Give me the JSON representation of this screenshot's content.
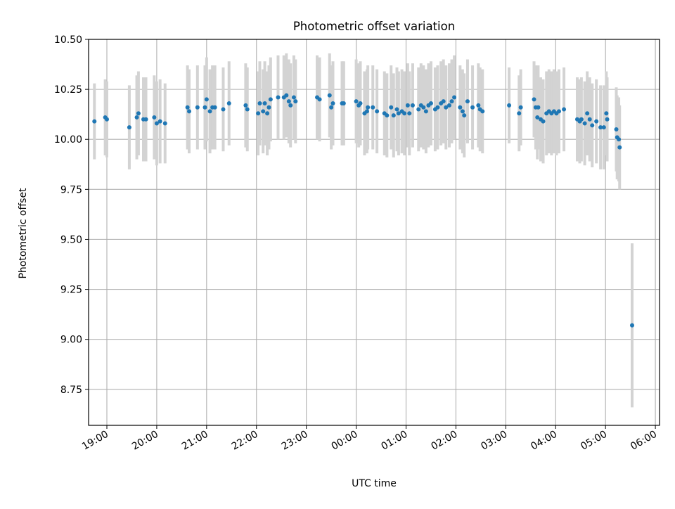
{
  "chart_data": {
    "type": "scatter",
    "title": "Photometric offset variation",
    "xlabel": "UTC time",
    "ylabel": "Photometric offset",
    "xlim": [
      "18:38",
      "30:05"
    ],
    "ylim": [
      8.57,
      10.5
    ],
    "grid": true,
    "x_ticks": [
      "19:00",
      "20:00",
      "21:00",
      "22:00",
      "23:00",
      "00:00",
      "01:00",
      "02:00",
      "03:00",
      "04:00",
      "05:00",
      "06:00"
    ],
    "y_ticks": [
      "10.50",
      "10.25",
      "10.00",
      "9.75",
      "9.50",
      "9.25",
      "9.00",
      "8.75"
    ],
    "point_color": "#1f77b4",
    "errorbar_color": "#d3d3d3",
    "points": [
      {
        "t": "18:45",
        "y": 10.09,
        "err": 0.19
      },
      {
        "t": "18:58",
        "y": 10.11,
        "err": 0.19
      },
      {
        "t": "19:00",
        "y": 10.1,
        "err": 0.19
      },
      {
        "t": "19:27",
        "y": 10.06,
        "err": 0.21
      },
      {
        "t": "19:36",
        "y": 10.11,
        "err": 0.21
      },
      {
        "t": "19:38",
        "y": 10.13,
        "err": 0.21
      },
      {
        "t": "19:44",
        "y": 10.1,
        "err": 0.21
      },
      {
        "t": "19:47",
        "y": 10.1,
        "err": 0.21
      },
      {
        "t": "19:57",
        "y": 10.11,
        "err": 0.21
      },
      {
        "t": "20:00",
        "y": 10.08,
        "err": 0.21
      },
      {
        "t": "20:04",
        "y": 10.09,
        "err": 0.21
      },
      {
        "t": "20:10",
        "y": 10.08,
        "err": 0.2
      },
      {
        "t": "20:37",
        "y": 10.16,
        "err": 0.21
      },
      {
        "t": "20:39",
        "y": 10.14,
        "err": 0.21
      },
      {
        "t": "20:49",
        "y": 10.16,
        "err": 0.21
      },
      {
        "t": "20:58",
        "y": 10.16,
        "err": 0.21
      },
      {
        "t": "21:00",
        "y": 10.2,
        "err": 0.21
      },
      {
        "t": "21:04",
        "y": 10.14,
        "err": 0.21
      },
      {
        "t": "21:07",
        "y": 10.16,
        "err": 0.21
      },
      {
        "t": "21:10",
        "y": 10.16,
        "err": 0.21
      },
      {
        "t": "21:20",
        "y": 10.15,
        "err": 0.21
      },
      {
        "t": "21:27",
        "y": 10.18,
        "err": 0.21
      },
      {
        "t": "21:47",
        "y": 10.17,
        "err": 0.21
      },
      {
        "t": "21:49",
        "y": 10.15,
        "err": 0.21
      },
      {
        "t": "22:02",
        "y": 10.13,
        "err": 0.21
      },
      {
        "t": "22:04",
        "y": 10.18,
        "err": 0.21
      },
      {
        "t": "22:08",
        "y": 10.14,
        "err": 0.21
      },
      {
        "t": "22:10",
        "y": 10.18,
        "err": 0.21
      },
      {
        "t": "22:13",
        "y": 10.13,
        "err": 0.21
      },
      {
        "t": "22:15",
        "y": 10.16,
        "err": 0.21
      },
      {
        "t": "22:17",
        "y": 10.2,
        "err": 0.21
      },
      {
        "t": "22:26",
        "y": 10.21,
        "err": 0.21
      },
      {
        "t": "22:33",
        "y": 10.21,
        "err": 0.21
      },
      {
        "t": "22:36",
        "y": 10.22,
        "err": 0.21
      },
      {
        "t": "22:39",
        "y": 10.19,
        "err": 0.21
      },
      {
        "t": "22:41",
        "y": 10.17,
        "err": 0.21
      },
      {
        "t": "22:45",
        "y": 10.21,
        "err": 0.21
      },
      {
        "t": "22:47",
        "y": 10.19,
        "err": 0.21
      },
      {
        "t": "23:13",
        "y": 10.21,
        "err": 0.21
      },
      {
        "t": "23:16",
        "y": 10.2,
        "err": 0.21
      },
      {
        "t": "23:28",
        "y": 10.22,
        "err": 0.21
      },
      {
        "t": "23:30",
        "y": 10.16,
        "err": 0.21
      },
      {
        "t": "23:32",
        "y": 10.18,
        "err": 0.21
      },
      {
        "t": "23:43",
        "y": 10.18,
        "err": 0.21
      },
      {
        "t": "23:45",
        "y": 10.18,
        "err": 0.21
      },
      {
        "t": "24:00",
        "y": 10.19,
        "err": 0.21
      },
      {
        "t": "24:03",
        "y": 10.17,
        "err": 0.21
      },
      {
        "t": "24:05",
        "y": 10.18,
        "err": 0.21
      },
      {
        "t": "24:10",
        "y": 10.13,
        "err": 0.21
      },
      {
        "t": "24:13",
        "y": 10.14,
        "err": 0.21
      },
      {
        "t": "24:14",
        "y": 10.16,
        "err": 0.21
      },
      {
        "t": "24:20",
        "y": 10.16,
        "err": 0.21
      },
      {
        "t": "24:25",
        "y": 10.14,
        "err": 0.21
      },
      {
        "t": "24:34",
        "y": 10.13,
        "err": 0.21
      },
      {
        "t": "24:37",
        "y": 10.12,
        "err": 0.21
      },
      {
        "t": "24:42",
        "y": 10.16,
        "err": 0.21
      },
      {
        "t": "24:45",
        "y": 10.12,
        "err": 0.21
      },
      {
        "t": "24:49",
        "y": 10.15,
        "err": 0.21
      },
      {
        "t": "24:51",
        "y": 10.13,
        "err": 0.21
      },
      {
        "t": "24:55",
        "y": 10.14,
        "err": 0.21
      },
      {
        "t": "24:58",
        "y": 10.13,
        "err": 0.21
      },
      {
        "t": "25:02",
        "y": 10.17,
        "err": 0.21
      },
      {
        "t": "25:04",
        "y": 10.13,
        "err": 0.21
      },
      {
        "t": "25:08",
        "y": 10.17,
        "err": 0.21
      },
      {
        "t": "25:15",
        "y": 10.15,
        "err": 0.21
      },
      {
        "t": "25:18",
        "y": 10.17,
        "err": 0.21
      },
      {
        "t": "25:21",
        "y": 10.16,
        "err": 0.21
      },
      {
        "t": "25:24",
        "y": 10.14,
        "err": 0.21
      },
      {
        "t": "25:27",
        "y": 10.17,
        "err": 0.21
      },
      {
        "t": "25:30",
        "y": 10.18,
        "err": 0.21
      },
      {
        "t": "25:35",
        "y": 10.15,
        "err": 0.21
      },
      {
        "t": "25:38",
        "y": 10.16,
        "err": 0.21
      },
      {
        "t": "25:42",
        "y": 10.18,
        "err": 0.21
      },
      {
        "t": "25:45",
        "y": 10.19,
        "err": 0.21
      },
      {
        "t": "25:48",
        "y": 10.16,
        "err": 0.21
      },
      {
        "t": "25:52",
        "y": 10.17,
        "err": 0.21
      },
      {
        "t": "25:55",
        "y": 10.19,
        "err": 0.21
      },
      {
        "t": "25:58",
        "y": 10.21,
        "err": 0.21
      },
      {
        "t": "26:05",
        "y": 10.16,
        "err": 0.21
      },
      {
        "t": "26:08",
        "y": 10.14,
        "err": 0.21
      },
      {
        "t": "26:10",
        "y": 10.12,
        "err": 0.21
      },
      {
        "t": "26:14",
        "y": 10.19,
        "err": 0.21
      },
      {
        "t": "26:20",
        "y": 10.16,
        "err": 0.21
      },
      {
        "t": "26:27",
        "y": 10.17,
        "err": 0.21
      },
      {
        "t": "26:29",
        "y": 10.15,
        "err": 0.21
      },
      {
        "t": "26:32",
        "y": 10.14,
        "err": 0.21
      },
      {
        "t": "27:04",
        "y": 10.17,
        "err": 0.19
      },
      {
        "t": "27:16",
        "y": 10.13,
        "err": 0.19
      },
      {
        "t": "27:18",
        "y": 10.16,
        "err": 0.19
      },
      {
        "t": "27:34",
        "y": 10.2,
        "err": 0.19
      },
      {
        "t": "27:36",
        "y": 10.16,
        "err": 0.21
      },
      {
        "t": "27:39",
        "y": 10.16,
        "err": 0.21
      },
      {
        "t": "27:38",
        "y": 10.11,
        "err": 0.21
      },
      {
        "t": "27:42",
        "y": 10.1,
        "err": 0.21
      },
      {
        "t": "27:45",
        "y": 10.09,
        "err": 0.21
      },
      {
        "t": "27:49",
        "y": 10.13,
        "err": 0.21
      },
      {
        "t": "27:52",
        "y": 10.14,
        "err": 0.21
      },
      {
        "t": "27:55",
        "y": 10.13,
        "err": 0.21
      },
      {
        "t": "27:58",
        "y": 10.14,
        "err": 0.21
      },
      {
        "t": "28:01",
        "y": 10.13,
        "err": 0.21
      },
      {
        "t": "28:04",
        "y": 10.14,
        "err": 0.21
      },
      {
        "t": "28:10",
        "y": 10.15,
        "err": 0.21
      },
      {
        "t": "28:26",
        "y": 10.1,
        "err": 0.21
      },
      {
        "t": "28:29",
        "y": 10.09,
        "err": 0.21
      },
      {
        "t": "28:31",
        "y": 10.1,
        "err": 0.21
      },
      {
        "t": "28:35",
        "y": 10.08,
        "err": 0.21
      },
      {
        "t": "28:38",
        "y": 10.13,
        "err": 0.21
      },
      {
        "t": "28:41",
        "y": 10.1,
        "err": 0.21
      },
      {
        "t": "28:44",
        "y": 10.07,
        "err": 0.21
      },
      {
        "t": "28:49",
        "y": 10.09,
        "err": 0.21
      },
      {
        "t": "28:54",
        "y": 10.06,
        "err": 0.21
      },
      {
        "t": "28:58",
        "y": 10.06,
        "err": 0.21
      },
      {
        "t": "29:01",
        "y": 10.13,
        "err": 0.21
      },
      {
        "t": "29:02",
        "y": 10.1,
        "err": 0.21
      },
      {
        "t": "29:13",
        "y": 10.05,
        "err": 0.21
      },
      {
        "t": "29:14",
        "y": 10.01,
        "err": 0.21
      },
      {
        "t": "29:16",
        "y": 10.0,
        "err": 0.21
      },
      {
        "t": "29:17",
        "y": 9.96,
        "err": 0.21
      },
      {
        "t": "29:32",
        "y": 9.07,
        "err": 0.41
      }
    ]
  }
}
